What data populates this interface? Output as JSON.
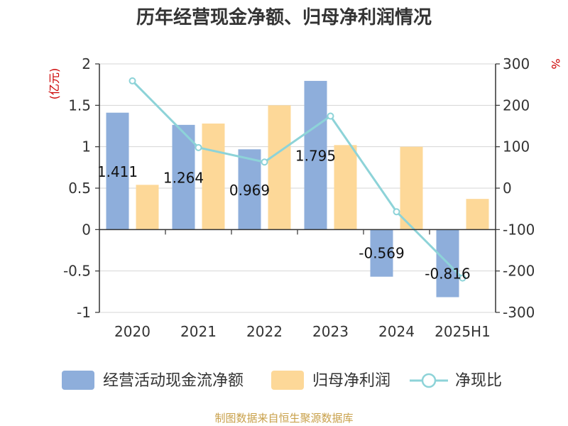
{
  "chart_data": {
    "type": "bar",
    "title": "历年经营现金净额、归母净利润情况",
    "categories": [
      "2020",
      "2021",
      "2022",
      "2023",
      "2024",
      "2025H1"
    ],
    "left_axis": {
      "unit": "(亿元)",
      "range": [
        -1,
        2
      ],
      "ticks": [
        "2",
        "1.5",
        "1",
        "0.5",
        "0",
        "-0.5",
        "-1"
      ]
    },
    "right_axis": {
      "unit": "%",
      "range": [
        -300,
        300
      ],
      "ticks": [
        "300",
        "200",
        "100",
        "0",
        "-100",
        "-200",
        "-300"
      ]
    },
    "series": [
      {
        "name": "经营活动现金流净额",
        "kind": "bar",
        "axis": "left",
        "color": "#8eaedb",
        "values": [
          1.411,
          1.264,
          0.969,
          1.795,
          -0.569,
          -0.816
        ],
        "labels": [
          "1.411",
          "1.264",
          "0.969",
          "1.795",
          "-0.569",
          "-0.816"
        ]
      },
      {
        "name": "归母净利润",
        "kind": "bar",
        "axis": "left",
        "color": "#fdd898",
        "values": [
          0.54,
          1.28,
          1.5,
          1.02,
          1.0,
          0.37
        ]
      },
      {
        "name": "净现比",
        "kind": "line",
        "axis": "right",
        "color": "#8dd3d8",
        "values": [
          259,
          98,
          63,
          174,
          -57,
          -217
        ]
      }
    ],
    "grid": true,
    "legend_position": "bottom"
  },
  "source_note": "制图数据来自恒生聚源数据库"
}
